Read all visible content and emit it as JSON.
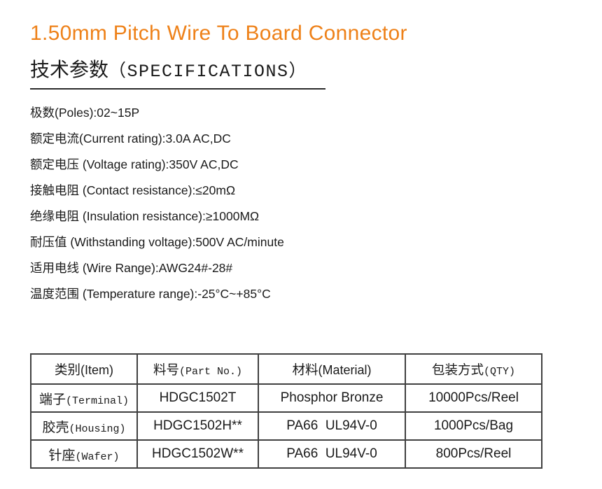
{
  "colors": {
    "accent": "#EE8119",
    "border": "#404040",
    "text": "#1a1a1a"
  },
  "header": {
    "title": "1.50mm Pitch Wire To Board Connector",
    "section_zh": "技术参数",
    "section_en": "（SPECIFICATIONS）"
  },
  "specs": [
    "极数(Poles):02~15P",
    "额定电流(Current rating):3.0A AC,DC",
    "额定电压 (Voltage rating):350V AC,DC",
    "接触电阻 (Contact resistance):≤20mΩ",
    "绝缘电阻 (Insulation resistance):≥1000MΩ",
    "耐压值 (Withstanding voltage):500V AC/minute",
    "适用电线 (Wire Range):AWG24#-28#",
    "温度范围 (Temperature range):-25°C~+85°C"
  ],
  "table": {
    "headers": [
      {
        "zh": "类别",
        "en": "(Item)"
      },
      {
        "zh": "料号",
        "en": "(Part No.)"
      },
      {
        "zh": "材料",
        "en": "(Material)"
      },
      {
        "zh": "包装方式",
        "en": "(QTY)"
      }
    ],
    "rows": [
      {
        "item_zh": "端子",
        "item_en": "(Terminal)",
        "part_no": "HDGC1502T",
        "material": "Phosphor Bronze",
        "qty": "10000Pcs/Reel"
      },
      {
        "item_zh": "胶壳",
        "item_en": "(Housing)",
        "part_no": "HDGC1502H**",
        "material": "PA66  UL94V-0",
        "qty": "1000Pcs/Bag"
      },
      {
        "item_zh": "针座",
        "item_en": "(Wafer)",
        "part_no": "HDGC1502W**",
        "material": "PA66  UL94V-0",
        "qty": "800Pcs/Reel"
      }
    ]
  }
}
